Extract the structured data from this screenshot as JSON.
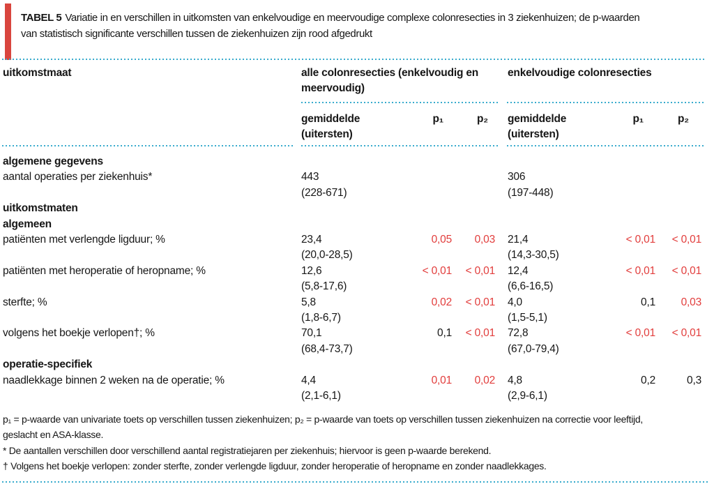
{
  "colors": {
    "accent_bar_red": "#d9453e",
    "significant_red": "#e23d3c",
    "dotted_rule_cyan": "#38abcd",
    "text": "#161616"
  },
  "title": {
    "label": "TABEL 5",
    "line1": "Variatie in en verschillen in uitkomsten van enkelvoudige en meervoudige complexe colonresecties in 3 ziekenhuizen; de p-waarden",
    "line2": "van statistisch significante verschillen tussen de ziekenhuizen zijn rood afgedrukt"
  },
  "table": {
    "row_header": "uitkomstmaat",
    "groups": [
      {
        "label": "alle colonresecties (enkelvoudig en\nmeervoudig)",
        "sub_mean": "gemiddelde\n(uitersten)",
        "sub_p1": "p₁",
        "sub_p2": "p₂"
      },
      {
        "label": "enkelvoudige colonresecties",
        "sub_mean": "gemiddelde\n(uitersten)",
        "sub_p1": "p₁",
        "sub_p2": "p₂"
      }
    ],
    "rows": [
      {
        "type": "section",
        "label": "algemene gegevens"
      },
      {
        "type": "data",
        "label": "aantal operaties per ziekenhuis*",
        "g1": {
          "mean": "443",
          "range": "(228-671)",
          "p1": "",
          "p1_sig": false,
          "p2": "",
          "p2_sig": false
        },
        "g2": {
          "mean": "306",
          "range": "(197-448)",
          "p1": "",
          "p1_sig": false,
          "p2": "",
          "p2_sig": false
        }
      },
      {
        "type": "section",
        "label": "uitkomstmaten"
      },
      {
        "type": "section",
        "label": "algemeen"
      },
      {
        "type": "data",
        "label": "patiënten met verlengde ligduur; %",
        "g1": {
          "mean": "23,4",
          "range": "(20,0-28,5)",
          "p1": "0,05",
          "p1_sig": true,
          "p2": "0,03",
          "p2_sig": true
        },
        "g2": {
          "mean": "21,4",
          "range": "(14,3-30,5)",
          "p1": "< 0,01",
          "p1_sig": true,
          "p2": "< 0,01",
          "p2_sig": true
        }
      },
      {
        "type": "data",
        "label": "patiënten met heroperatie of heropname; %",
        "g1": {
          "mean": "12,6",
          "range": "(5,8-17,6)",
          "p1": "< 0,01",
          "p1_sig": true,
          "p2": "< 0,01",
          "p2_sig": true
        },
        "g2": {
          "mean": "12,4",
          "range": "(6,6-16,5)",
          "p1": "< 0,01",
          "p1_sig": true,
          "p2": "< 0,01",
          "p2_sig": true
        }
      },
      {
        "type": "data",
        "label": "sterfte; %",
        "g1": {
          "mean": "5,8",
          "range": "(1,8-6,7)",
          "p1": "0,02",
          "p1_sig": true,
          "p2": "< 0,01",
          "p2_sig": true
        },
        "g2": {
          "mean": "4,0",
          "range": "(1,5-5,1)",
          "p1": "0,1",
          "p1_sig": false,
          "p2": "0,03",
          "p2_sig": true
        }
      },
      {
        "type": "data",
        "label": "volgens het boekje verlopen†; %",
        "g1": {
          "mean": "70,1",
          "range": "(68,4-73,7)",
          "p1": "0,1",
          "p1_sig": false,
          "p2": "< 0,01",
          "p2_sig": true
        },
        "g2": {
          "mean": "72,8",
          "range": "(67,0-79,4)",
          "p1": "< 0,01",
          "p1_sig": true,
          "p2": "< 0,01",
          "p2_sig": true
        }
      },
      {
        "type": "section",
        "label": "operatie-specifiek"
      },
      {
        "type": "data",
        "label": "naadlekkage binnen 2 weken na de operatie; %",
        "g1": {
          "mean": "4,4",
          "range": "(2,1-6,1)",
          "p1": "0,01",
          "p1_sig": true,
          "p2": "0,02",
          "p2_sig": true
        },
        "g2": {
          "mean": "4,8",
          "range": "(2,9-6,1)",
          "p1": "0,2",
          "p1_sig": false,
          "p2": "0,3",
          "p2_sig": false
        }
      }
    ]
  },
  "footnotes": [
    "p₁ = p-waarde van univariate toets op verschillen tussen ziekenhuizen; p₂ = p-waarde van toets op verschillen tussen ziekenhuizen na correctie voor leeftijd,\ngeslacht en ASA-klasse.",
    "* De aantallen verschillen door verschillend aantal registratiejaren per ziekenhuis; hiervoor is geen p-waarde berekend.",
    "† Volgens het boekje verlopen: zonder sterfte, zonder verlengde ligduur, zonder heroperatie of heropname en zonder naadlekkages."
  ]
}
